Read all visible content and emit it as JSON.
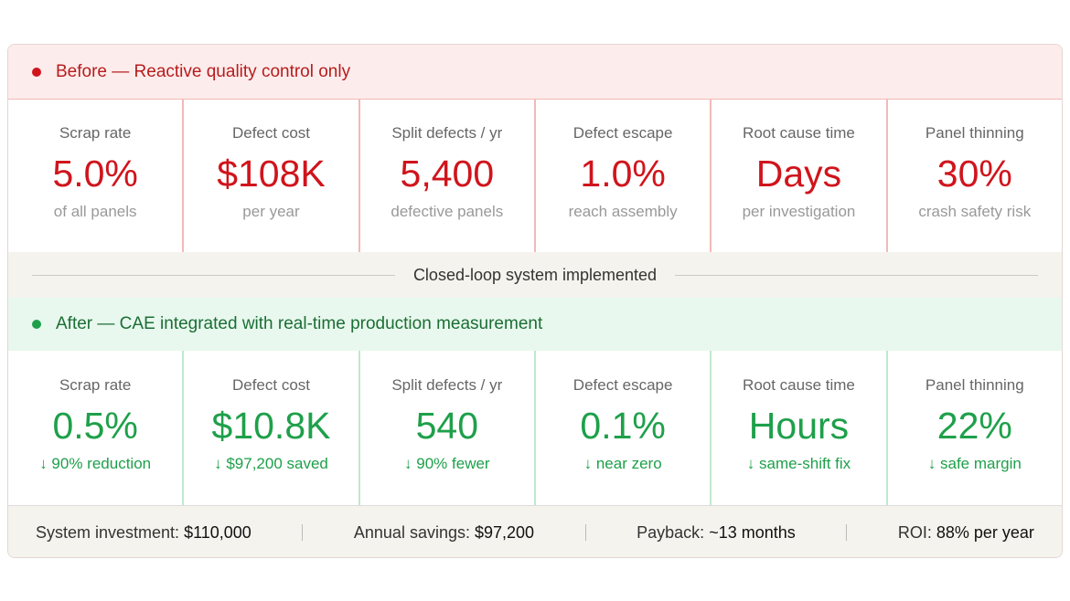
{
  "before": {
    "title": "Before — Reactive quality control only",
    "metrics": [
      {
        "label": "Scrap rate",
        "value": "5.0%",
        "note": "of all panels"
      },
      {
        "label": "Defect cost",
        "value": "$108K",
        "note": "per year"
      },
      {
        "label": "Split defects / yr",
        "value": "5,400",
        "note": "defective panels"
      },
      {
        "label": "Defect escape",
        "value": "1.0%",
        "note": "reach assembly"
      },
      {
        "label": "Root cause time",
        "value": "Days",
        "note": "per investigation"
      },
      {
        "label": "Panel thinning",
        "value": "30%",
        "note": "crash safety risk"
      }
    ]
  },
  "divider": "Closed-loop system implemented",
  "after": {
    "title": "After — CAE integrated with real-time production measurement",
    "metrics": [
      {
        "label": "Scrap rate",
        "value": "0.5%",
        "note": "↓ 90% reduction"
      },
      {
        "label": "Defect cost",
        "value": "$10.8K",
        "note": "↓ $97,200 saved"
      },
      {
        "label": "Split defects / yr",
        "value": "540",
        "note": "↓ 90% fewer"
      },
      {
        "label": "Defect escape",
        "value": "0.1%",
        "note": "↓ near zero"
      },
      {
        "label": "Root cause time",
        "value": "Hours",
        "note": "↓ same-shift fix"
      },
      {
        "label": "Panel thinning",
        "value": "22%",
        "note": "↓ safe margin"
      }
    ]
  },
  "footer": [
    {
      "label": "System investment:",
      "value": "$110,000"
    },
    {
      "label": "Annual savings:",
      "value": "$97,200"
    },
    {
      "label": "Payback:",
      "value": "~13 months"
    },
    {
      "label": "ROI:",
      "value": "88% per year"
    }
  ]
}
